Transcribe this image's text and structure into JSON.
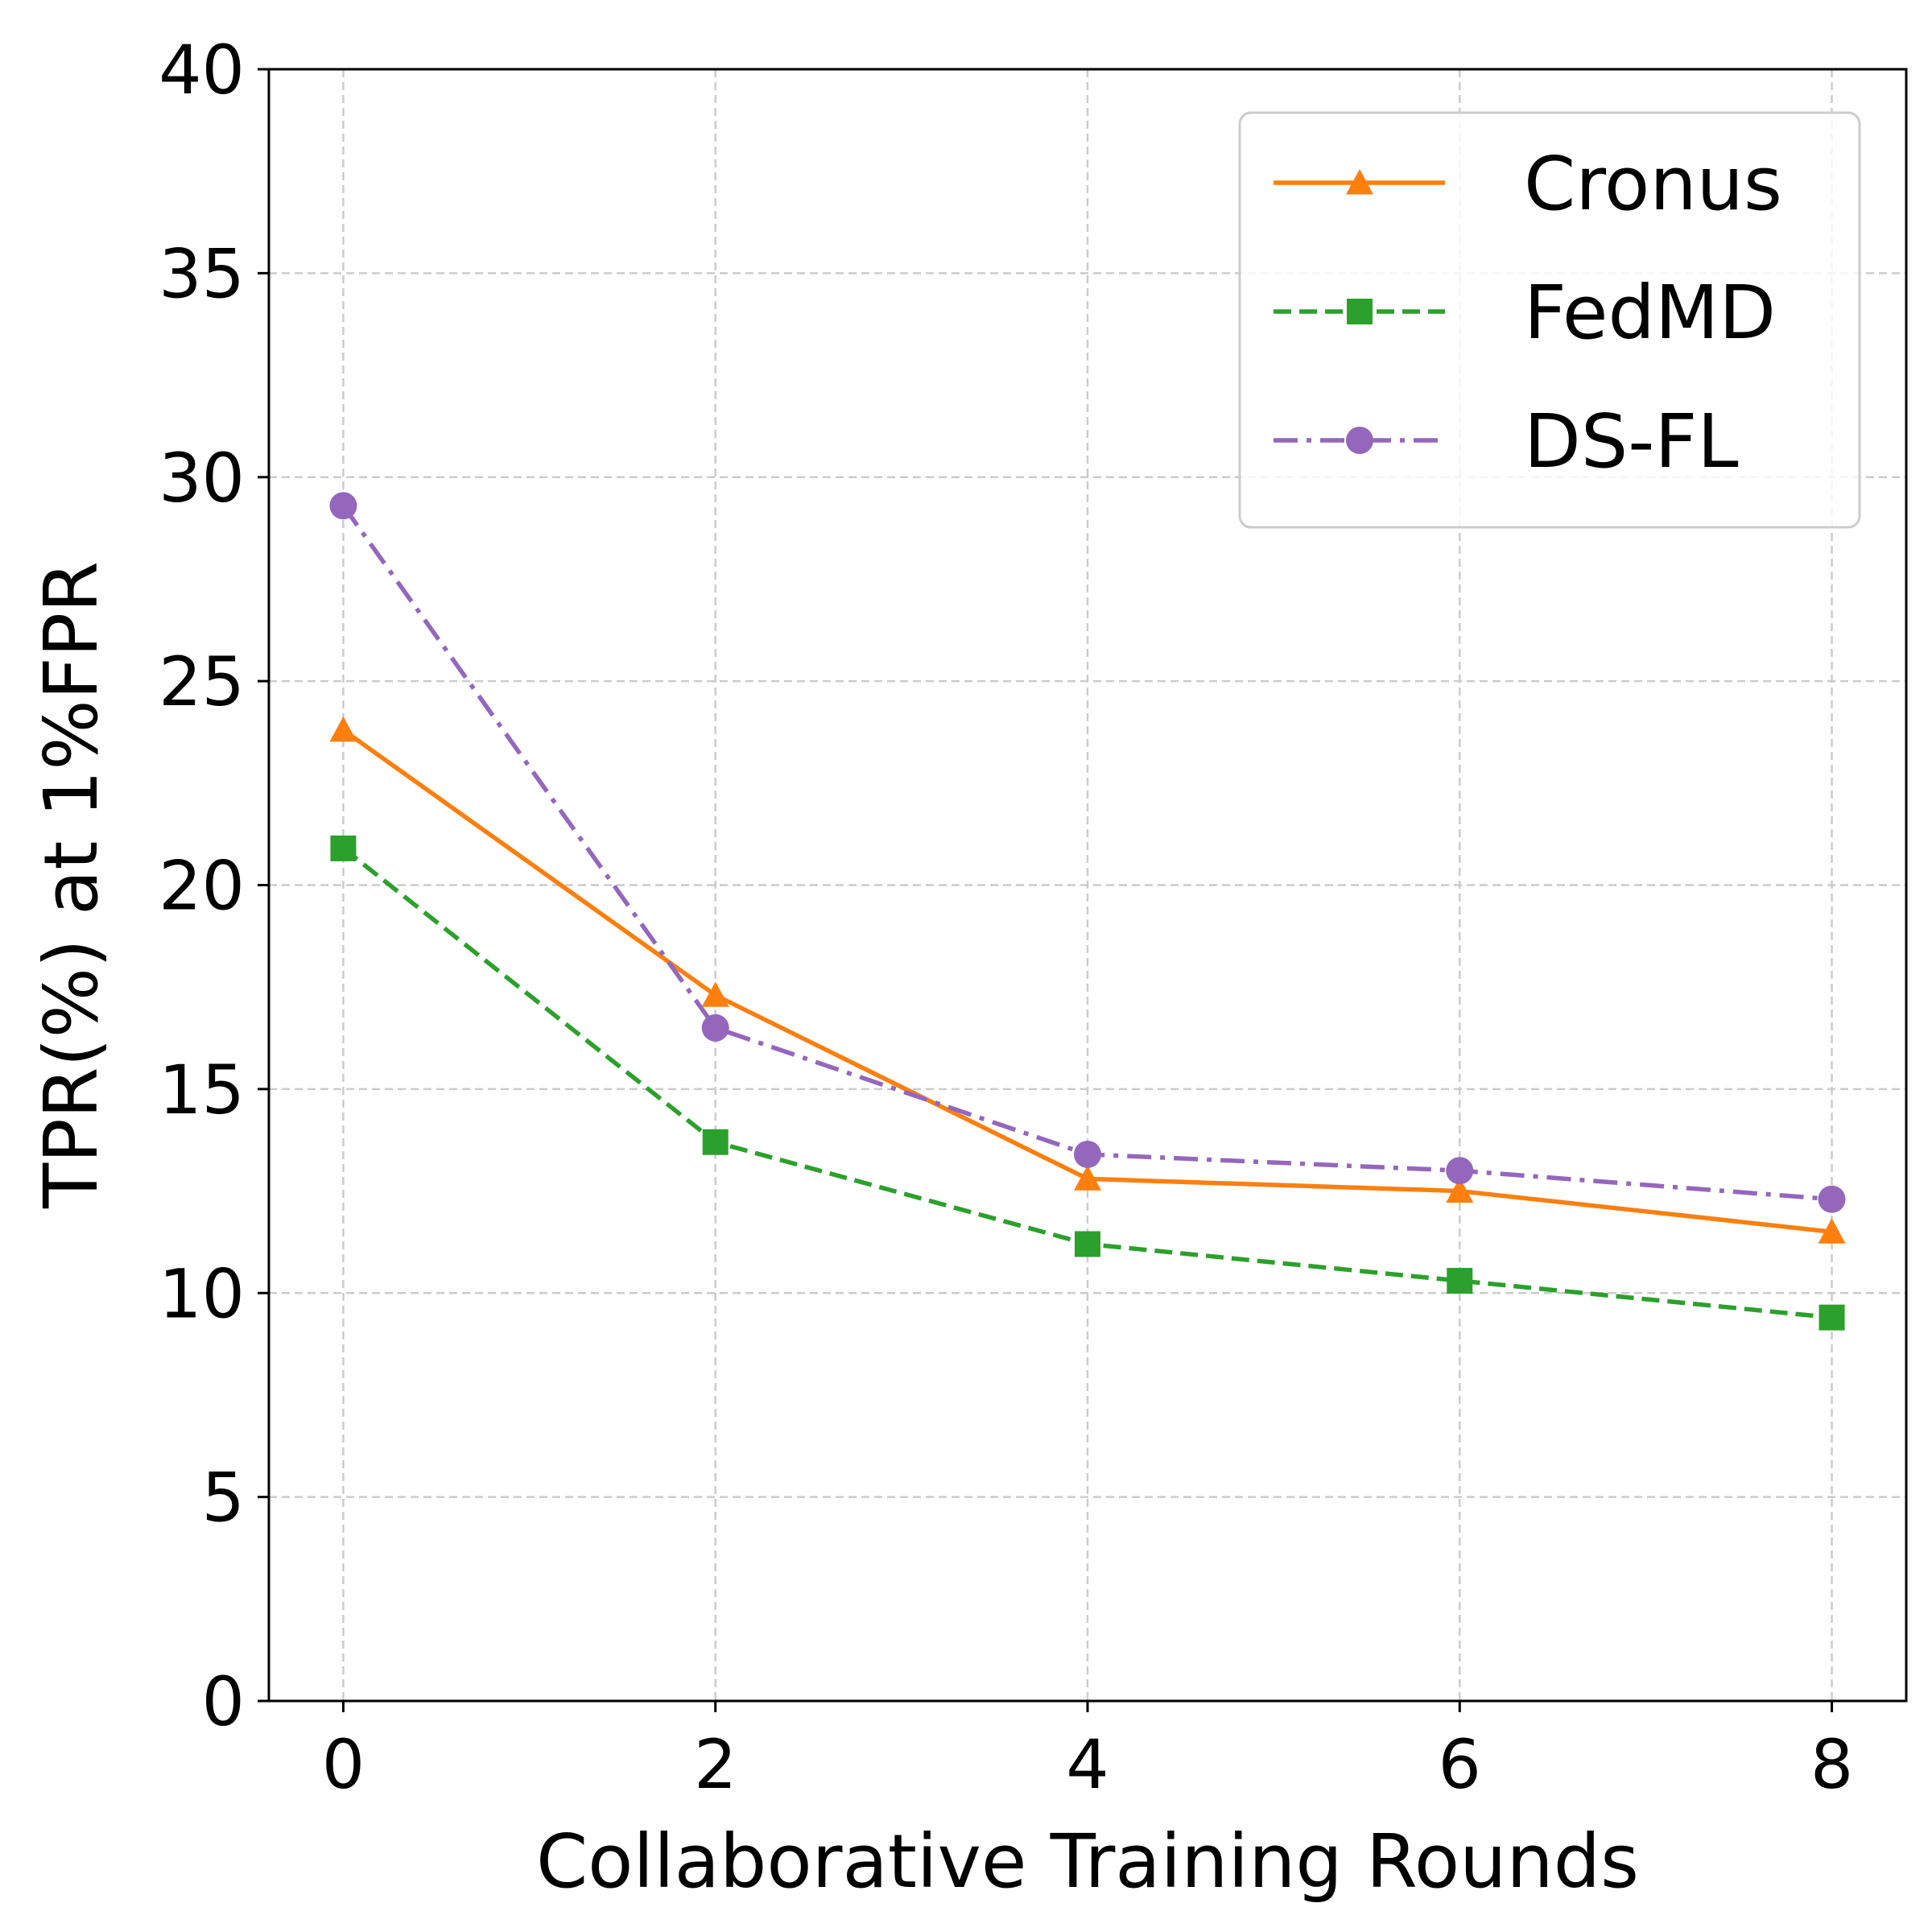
{
  "chart_data": {
    "type": "line",
    "xlabel": "Collaborative Training Rounds",
    "ylabel": "TPR(%) at 1%FPR",
    "xlim": [
      -0.4,
      8.4
    ],
    "ylim": [
      0,
      40
    ],
    "x_ticks": [
      "0",
      "2",
      "4",
      "6",
      "8"
    ],
    "y_ticks": [
      "0",
      "5",
      "10",
      "15",
      "20",
      "25",
      "30",
      "35",
      "40"
    ],
    "x": [
      0,
      2,
      4,
      6,
      8
    ],
    "grid": true,
    "legend_position": "top-right",
    "series": [
      {
        "name": "Cronus",
        "values": [
          23.8,
          17.3,
          12.8,
          12.5,
          11.5
        ],
        "color": "#ff7f0e",
        "marker": "triangle",
        "line_style": "solid"
      },
      {
        "name": "FedMD",
        "values": [
          20.9,
          13.7,
          11.2,
          10.3,
          9.4
        ],
        "color": "#2ca02c",
        "marker": "square",
        "line_style": "dashed"
      },
      {
        "name": "DS-FL",
        "values": [
          29.3,
          16.5,
          13.4,
          13.0,
          12.3
        ],
        "color": "#9467bd",
        "marker": "circle",
        "line_style": "dashdot"
      }
    ]
  }
}
